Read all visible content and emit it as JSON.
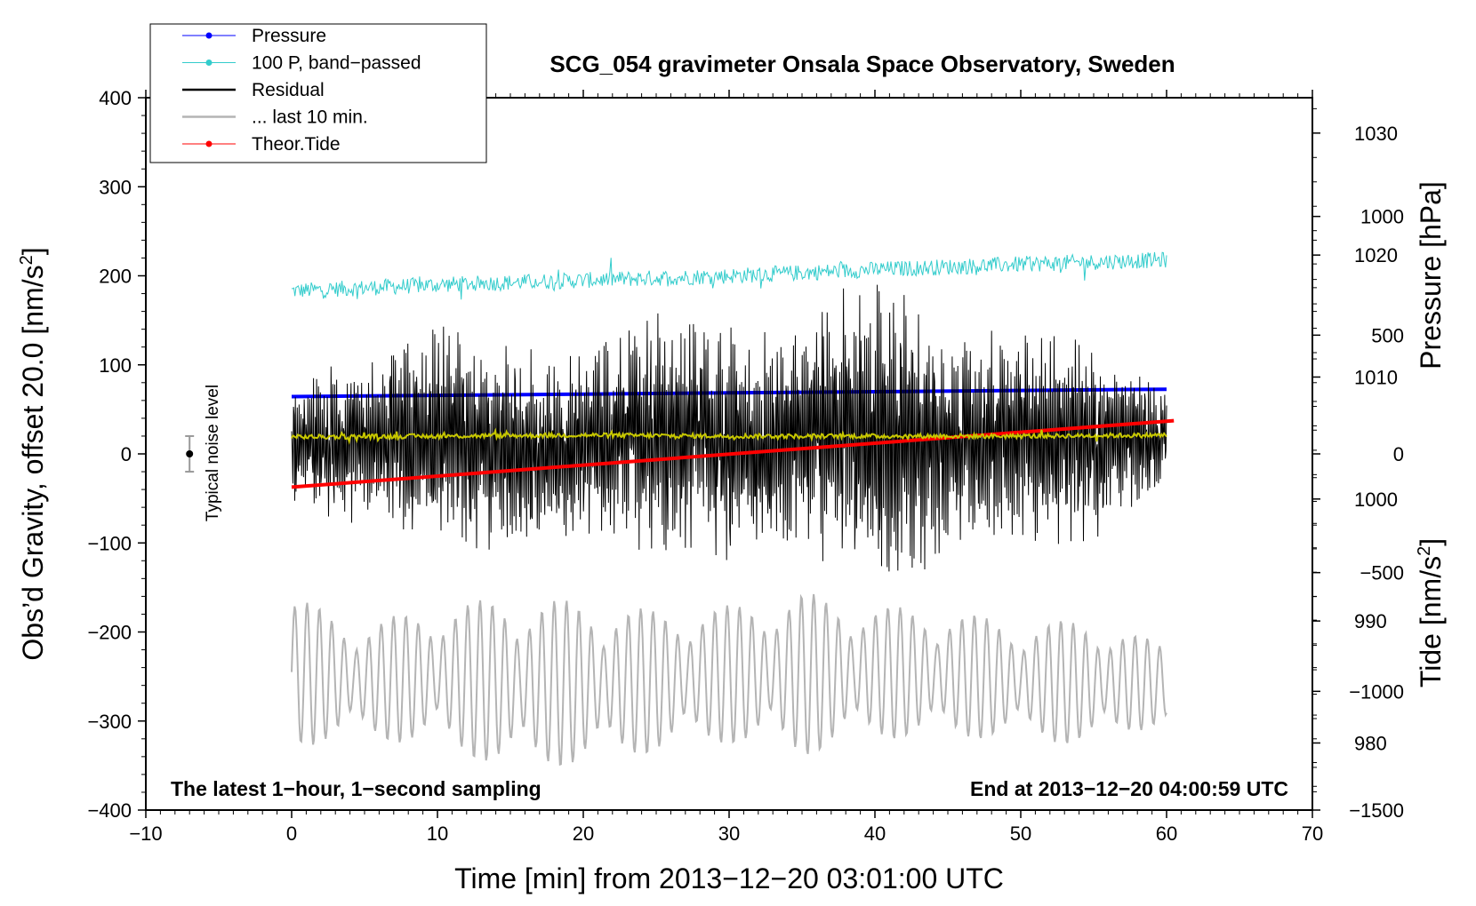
{
  "chart_data": {
    "type": "line",
    "title": "SCG_054 gravimeter Onsala Space Observatory, Sweden",
    "xlabel": "Time [min] from 2013−12−20 03:01:00 UTC",
    "ylabel": "Obs’d Gravity, offset 20.0 [nm/s",
    "ylabel_sup": "2",
    "ylabel_end": "]",
    "y2label": "Pressure [hPa]",
    "y3label": "Tide [nm/s",
    "y3label_sup": "2",
    "y3label_end": "]",
    "xlim": [
      -10,
      70
    ],
    "ylim": [
      -400,
      400
    ],
    "pressure_lim": [
      974.5,
      1032.9
    ],
    "tide_lim": [
      -1500,
      1500
    ],
    "xticks": [
      "−10",
      "0",
      "10",
      "20",
      "30",
      "40",
      "50",
      "60",
      "70"
    ],
    "xtick_values": [
      -10,
      0,
      10,
      20,
      30,
      40,
      50,
      60,
      70
    ],
    "yticks": [
      "−400",
      "−300",
      "−200",
      "−100",
      "0",
      "100",
      "200",
      "300",
      "400"
    ],
    "ytick_values": [
      -400,
      -300,
      -200,
      -100,
      0,
      100,
      200,
      300,
      400
    ],
    "pressure_ticks": [
      "980",
      "990",
      "1000",
      "1010",
      "1020",
      "1030"
    ],
    "pressure_tick_values": [
      980,
      990,
      1000,
      1010,
      1020,
      1030
    ],
    "tide_ticks": [
      "−1500",
      "−1000",
      "−500",
      "0",
      "500",
      "1000"
    ],
    "tide_tick_values": [
      -1500,
      -1000,
      -500,
      0,
      500,
      1000
    ],
    "legend": [
      {
        "label": "Pressure",
        "color": "#0000ff",
        "marker": true
      },
      {
        "label": "100 P, band−passed",
        "color": "#33cccc",
        "marker": true
      },
      {
        "label": "Residual",
        "color": "#000000",
        "marker": false
      },
      {
        "label": "... last 10 min.",
        "color": "#b4b4b4",
        "marker": false
      },
      {
        "label": "Theor.Tide",
        "color": "#ff0000",
        "marker": true
      }
    ],
    "annotations": {
      "bottom_left": "The latest 1−hour, 1−second sampling",
      "bottom_right": "End at 2013−12−20 04:00:59 UTC",
      "noise_label": "Typical noise level"
    },
    "series": [
      {
        "name": "Pressure",
        "axis": "pressure",
        "color": "#0000ff",
        "x": [
          0,
          10,
          20,
          30,
          40,
          50,
          60
        ],
        "values": [
          1008.4,
          1008.5,
          1008.6,
          1008.7,
          1008.8,
          1008.9,
          1009.0
        ]
      },
      {
        "name": "100 P, band−passed",
        "axis": "gravity",
        "color": "#33cccc",
        "x": [
          0,
          10,
          20,
          30,
          40,
          50,
          60
        ],
        "values": [
          183,
          190,
          195,
          200,
          207,
          213,
          218
        ]
      },
      {
        "name": "Residual",
        "axis": "gravity",
        "color": "#000000",
        "x": [
          0,
          5,
          10,
          15,
          20,
          25,
          30,
          35,
          38,
          42,
          45,
          50,
          55,
          60
        ],
        "envelope_upper": [
          95,
          110,
          150,
          120,
          115,
          165,
          150,
          135,
          220,
          190,
          130,
          145,
          140,
          75
        ],
        "envelope_lower": [
          -70,
          -85,
          -110,
          -125,
          -95,
          -115,
          -125,
          -105,
          -160,
          -165,
          -100,
          -110,
          -105,
          -40
        ]
      },
      {
        "name": "Residual, smoothed",
        "axis": "gravity",
        "color": "#c8c800",
        "x": [
          0,
          10,
          20,
          30,
          40,
          50,
          60
        ],
        "values": [
          19,
          20,
          21,
          20,
          20,
          20,
          21
        ]
      },
      {
        "name": "... last 10 min.",
        "axis": "gravity",
        "color": "#b4b4b4",
        "x": [
          0,
          5,
          10,
          15,
          20,
          25,
          30,
          35,
          40,
          45,
          50,
          55,
          60
        ],
        "envelope_upper": [
          -160,
          -190,
          -170,
          -160,
          -165,
          -175,
          -170,
          -155,
          -170,
          -175,
          -190,
          -185,
          -215
        ],
        "envelope_lower": [
          -330,
          -320,
          -330,
          -355,
          -350,
          -335,
          -325,
          -340,
          -320,
          -320,
          -320,
          -330,
          -300
        ]
      },
      {
        "name": "Theor.Tide",
        "axis": "tide",
        "color": "#ff0000",
        "x": [
          0,
          60.5
        ],
        "values": [
          -140,
          140
        ]
      }
    ],
    "noise_level": {
      "x": -7,
      "center": 0,
      "half_range": 20
    }
  }
}
